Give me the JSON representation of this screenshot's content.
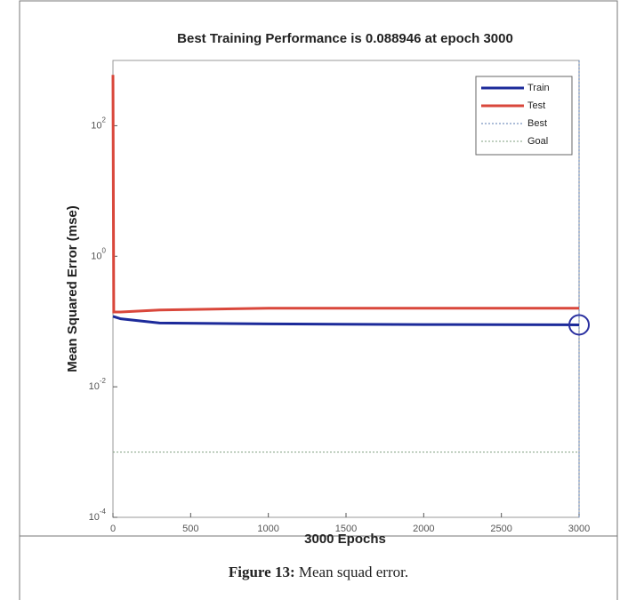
{
  "chart_data": {
    "type": "line",
    "title": "Best Training Performance is 0.088946 at epoch 3000",
    "xlabel": "3000 Epochs",
    "ylabel": "Mean Squared Error  (mse)",
    "log_y": true,
    "xlim": [
      0,
      3000
    ],
    "xticks": [
      0,
      500,
      1000,
      1500,
      2000,
      2500,
      3000
    ],
    "ylim": [
      0.0001,
      1000
    ],
    "yticks": [
      {
        "value": 0.0001,
        "label": "10",
        "sup": "-4"
      },
      {
        "value": 0.01,
        "label": "10",
        "sup": "-2"
      },
      {
        "value": 1,
        "label": "10",
        "sup": "0"
      },
      {
        "value": 100,
        "label": "10",
        "sup": "2"
      }
    ],
    "legend": "upper right",
    "series": [
      {
        "name": "Train",
        "color": "#1c2a9a",
        "x": [
          0,
          50,
          300,
          1000,
          2000,
          3000
        ],
        "values": [
          0.12,
          0.11,
          0.095,
          0.092,
          0.09,
          0.088946
        ]
      },
      {
        "name": "Test",
        "color": "#d9473b",
        "x": [
          0,
          5,
          50,
          300,
          1000,
          3000
        ],
        "values": [
          600,
          0.14,
          0.14,
          0.15,
          0.16,
          0.16
        ]
      }
    ],
    "reference_lines": [
      {
        "name": "Best",
        "color": "#5a7bb0",
        "value": 0.088946,
        "epoch": 3000
      },
      {
        "name": "Goal",
        "color": "#7f9f7f",
        "value": 0.001
      }
    ]
  },
  "caption": {
    "label": "Figure 13:",
    "text": "Mean squad error."
  }
}
